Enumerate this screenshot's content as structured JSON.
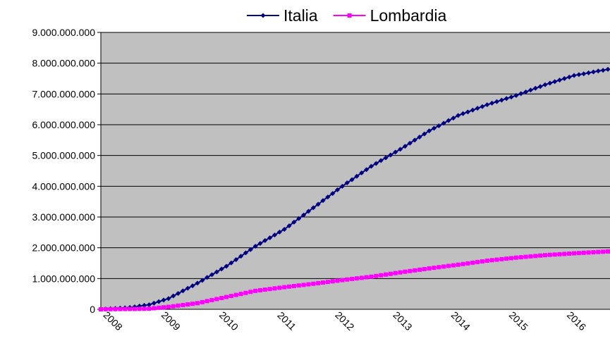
{
  "chart_data": {
    "type": "line",
    "categories": [
      null,
      null,
      "2008",
      null,
      null,
      null,
      null,
      null,
      null,
      null,
      null,
      null,
      null,
      null,
      "2009",
      null,
      null,
      null,
      null,
      null,
      null,
      null,
      null,
      null,
      null,
      null,
      "2010",
      null,
      null,
      null,
      null,
      null,
      null,
      null,
      null,
      null,
      null,
      null,
      "2011",
      null,
      null,
      null,
      null,
      null,
      null,
      null,
      null,
      null,
      null,
      null,
      "2012",
      null,
      null,
      null,
      null,
      null,
      null,
      null,
      null,
      null,
      null,
      null,
      "2013",
      null,
      null,
      null,
      null,
      null,
      null,
      null,
      null,
      null,
      null,
      null,
      "2014",
      null,
      null,
      null,
      null,
      null,
      null,
      null,
      null,
      null,
      null,
      null,
      "2015",
      null,
      null,
      null,
      null,
      null,
      null,
      null,
      null,
      null,
      null,
      null,
      "2016",
      null,
      null,
      null,
      null,
      null,
      null,
      null
    ],
    "series": [
      {
        "name": "Italia",
        "color": "#000080",
        "marker": "diamond",
        "values": [
          0,
          10000000,
          20000000,
          30000000,
          40000000,
          50000000,
          60000000,
          80000000,
          105000000,
          130000000,
          150000000,
          200000000,
          250000000,
          300000000,
          350000000,
          435000000,
          515000000,
          600000000,
          685000000,
          765000000,
          850000000,
          940000000,
          1035000000,
          1125000000,
          1215000000,
          1310000000,
          1400000000,
          1510000000,
          1615000000,
          1725000000,
          1835000000,
          1940000000,
          2050000000,
          2140000000,
          2235000000,
          2325000000,
          2415000000,
          2510000000,
          2600000000,
          2715000000,
          2835000000,
          2950000000,
          3065000000,
          3185000000,
          3300000000,
          3415000000,
          3535000000,
          3650000000,
          3765000000,
          3885000000,
          4000000000,
          4110000000,
          4215000000,
          4325000000,
          4435000000,
          4540000000,
          4650000000,
          4740000000,
          4835000000,
          4925000000,
          5015000000,
          5110000000,
          5200000000,
          5300000000,
          5400000000,
          5500000000,
          5600000000,
          5700000000,
          5800000000,
          5885000000,
          5965000000,
          6050000000,
          6135000000,
          6215000000,
          6300000000,
          6360000000,
          6415000000,
          6475000000,
          6535000000,
          6590000000,
          6650000000,
          6700000000,
          6750000000,
          6800000000,
          6850000000,
          6900000000,
          6950000000,
          7010000000,
          7065000000,
          7125000000,
          7185000000,
          7240000000,
          7300000000,
          7350000000,
          7400000000,
          7450000000,
          7500000000,
          7550000000,
          7600000000,
          7630000000,
          7655000000,
          7685000000,
          7715000000,
          7745000000,
          7770000000,
          7800000000
        ]
      },
      {
        "name": "Lombardia",
        "color": "#ff00ff",
        "marker": "square",
        "values": [
          0,
          2000000,
          4000000,
          6000000,
          8000000,
          10000000,
          12000000,
          14000000,
          16000000,
          18000000,
          20000000,
          35000000,
          50000000,
          65000000,
          80000000,
          100000000,
          120000000,
          140000000,
          160000000,
          180000000,
          200000000,
          233000000,
          267000000,
          300000000,
          333000000,
          367000000,
          400000000,
          433000000,
          467000000,
          500000000,
          533000000,
          567000000,
          600000000,
          620000000,
          640000000,
          660000000,
          680000000,
          700000000,
          720000000,
          738000000,
          757000000,
          775000000,
          793000000,
          812000000,
          830000000,
          850000000,
          870000000,
          890000000,
          910000000,
          930000000,
          950000000,
          968000000,
          987000000,
          1005000000,
          1023000000,
          1042000000,
          1060000000,
          1083000000,
          1107000000,
          1130000000,
          1153000000,
          1177000000,
          1200000000,
          1222000000,
          1243000000,
          1265000000,
          1287000000,
          1308000000,
          1330000000,
          1350000000,
          1370000000,
          1390000000,
          1410000000,
          1430000000,
          1450000000,
          1472000000,
          1493000000,
          1515000000,
          1537000000,
          1558000000,
          1580000000,
          1597000000,
          1613000000,
          1630000000,
          1647000000,
          1663000000,
          1680000000,
          1693000000,
          1707000000,
          1720000000,
          1733000000,
          1747000000,
          1760000000,
          1770000000,
          1780000000,
          1790000000,
          1800000000,
          1810000000,
          1820000000,
          1829000000,
          1837000000,
          1846000000,
          1854000000,
          1863000000,
          1871000000,
          1880000000
        ]
      }
    ],
    "ylim": [
      0,
      9000000000
    ],
    "yticks": [
      0,
      {
        "value": 1000000000,
        "label": "1.000.000.000"
      },
      {
        "value": 2000000000,
        "label": "2.000.000.000"
      },
      {
        "value": 3000000000,
        "label": "3.000.000.000"
      },
      {
        "value": 4000000000,
        "label": "4.000.000.000"
      },
      {
        "value": 5000000000,
        "label": "5.000.000.000"
      },
      {
        "value": 6000000000,
        "label": "6.000.000.000"
      },
      {
        "value": 7000000000,
        "label": "7.000.000.000"
      },
      {
        "value": 8000000000,
        "label": "8.000.000.000"
      },
      {
        "value": 9000000000,
        "label": "9.000.000.000"
      }
    ],
    "grid": true,
    "plot_background": "#c0c0c0",
    "legend": "top"
  }
}
